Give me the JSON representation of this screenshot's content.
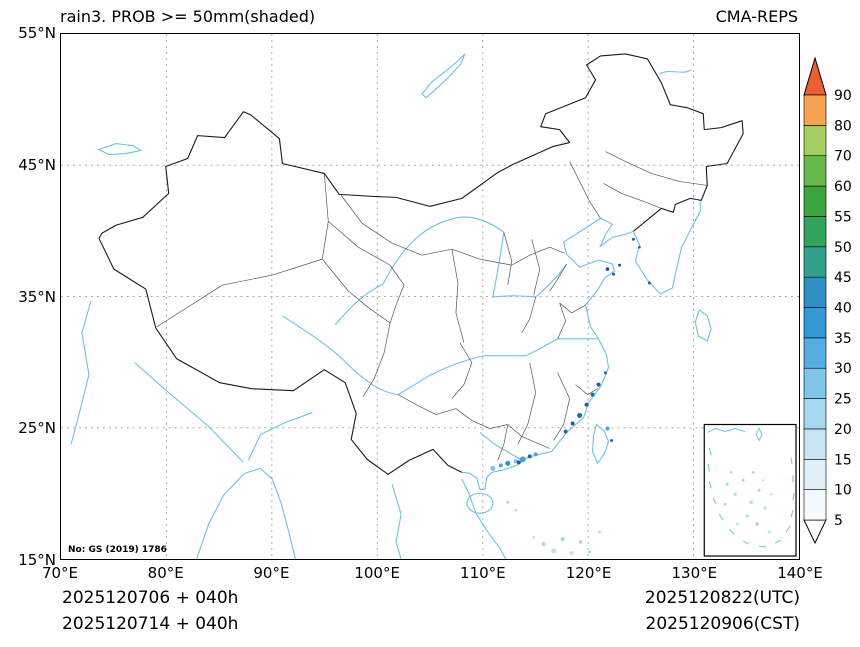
{
  "header": {
    "title": "rain3. PROB >= 50mm(shaded)",
    "model": "CMA-REPS"
  },
  "map": {
    "watermark": "No: GS (2019) 1786",
    "colors": {
      "water": "#6cc1e6",
      "national_border": "#1a1a1a",
      "province_border": "#555555",
      "gridline": "#a9a9a9",
      "shading_light": "#bfe0f2",
      "shading_medium": "#4aa3dc",
      "shading_dark": "#1d5fa0"
    }
  },
  "axes": {
    "lon_ticks": [
      "70°E",
      "80°E",
      "90°E",
      "100°E",
      "110°E",
      "120°E",
      "130°E",
      "140°E"
    ],
    "lat_ticks": [
      "55°N",
      "45°N",
      "35°N",
      "25°N",
      "15°N"
    ]
  },
  "colorbar": {
    "labels": [
      "5",
      "10",
      "15",
      "20",
      "25",
      "30",
      "35",
      "40",
      "45",
      "50",
      "55",
      "60",
      "70",
      "80",
      "90"
    ],
    "segment_colors_bottom_to_top": [
      "#f4fafd",
      "#e1f0f8",
      "#c8e5f3",
      "#a6d7ef",
      "#7fc5ea",
      "#55aee2",
      "#3399d2",
      "#2f8fc4",
      "#33a08c",
      "#33a25c",
      "#3ba63f",
      "#67b84a",
      "#a3cf62",
      "#f5a353"
    ],
    "over_color": "#ec5f33",
    "under_color": "#ffffff"
  },
  "footer": {
    "left_line1": "2025120706  +  040h",
    "left_line2": "2025120714  +  040h",
    "right_line1": "2025120822(UTC)",
    "right_line2": "2025120906(CST)"
  }
}
